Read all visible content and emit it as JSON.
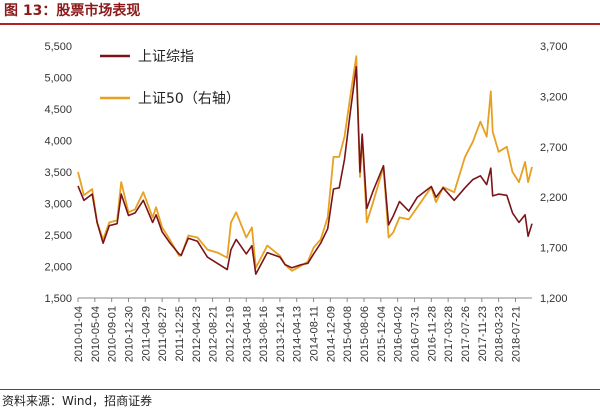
{
  "title": "图 13：股票市场表现",
  "source": "资料来源：Wind，招商证券",
  "chart_data": {
    "type": "line",
    "legend_position": "top-left",
    "grid": false,
    "y_left": {
      "lim": [
        1500,
        5500
      ],
      "ticks": [
        "1,500",
        "2,000",
        "2,500",
        "3,000",
        "3,500",
        "4,000",
        "4,500",
        "5,000",
        "5,500"
      ]
    },
    "y_right": {
      "lim": [
        1200,
        3700
      ],
      "ticks": [
        "1,200",
        "1,700",
        "2,200",
        "2,700",
        "3,200",
        "3,700"
      ]
    },
    "x_tick_labels": [
      "2010-01-04",
      "2010-05-04",
      "2010-09-01",
      "2010-12-30",
      "2011-04-29",
      "2011-08-27",
      "2011-12-25",
      "2012-04-23",
      "2012-08-21",
      "2012-12-19",
      "2013-04-18",
      "2013-08-16",
      "2013-12-14",
      "2014-04-13",
      "2014-08-11",
      "2014-12-09",
      "2015-04-08",
      "2015-08-06",
      "2015-12-04",
      "2016-04-02",
      "2016-07-31",
      "2016-11-28",
      "2017-03-28",
      "2017-07-26",
      "2017-11-23",
      "2018-03-23",
      "2018-07-21"
    ],
    "x_range": [
      "2010-01-04",
      "2018-11-16"
    ],
    "series": [
      {
        "name": "上证综指",
        "axis": "left",
        "color": "#7b1418",
        "points": [
          [
            "2010-01-04",
            3280
          ],
          [
            "2010-02-15",
            3050
          ],
          [
            "2010-04-15",
            3150
          ],
          [
            "2010-05-20",
            2700
          ],
          [
            "2010-07-02",
            2370
          ],
          [
            "2010-08-15",
            2650
          ],
          [
            "2010-10-10",
            2680
          ],
          [
            "2010-11-08",
            3150
          ],
          [
            "2010-12-30",
            2810
          ],
          [
            "2011-02-15",
            2850
          ],
          [
            "2011-04-15",
            3050
          ],
          [
            "2011-06-20",
            2700
          ],
          [
            "2011-07-15",
            2820
          ],
          [
            "2011-08-27",
            2550
          ],
          [
            "2011-10-20",
            2380
          ],
          [
            "2011-12-25",
            2200
          ],
          [
            "2012-01-10",
            2180
          ],
          [
            "2012-03-01",
            2450
          ],
          [
            "2012-05-05",
            2400
          ],
          [
            "2012-07-15",
            2150
          ],
          [
            "2012-09-25",
            2050
          ],
          [
            "2012-12-03",
            1950
          ],
          [
            "2012-12-30",
            2270
          ],
          [
            "2013-02-05",
            2430
          ],
          [
            "2013-04-18",
            2200
          ],
          [
            "2013-05-28",
            2330
          ],
          [
            "2013-06-25",
            1880
          ],
          [
            "2013-09-15",
            2220
          ],
          [
            "2013-12-14",
            2150
          ],
          [
            "2014-01-20",
            2030
          ],
          [
            "2014-03-10",
            1980
          ],
          [
            "2014-05-15",
            2030
          ],
          [
            "2014-07-01",
            2050
          ],
          [
            "2014-08-11",
            2200
          ],
          [
            "2014-10-01",
            2370
          ],
          [
            "2014-11-20",
            2600
          ],
          [
            "2014-12-31",
            3230
          ],
          [
            "2015-02-10",
            3250
          ],
          [
            "2015-03-20",
            3700
          ],
          [
            "2015-04-30",
            4450
          ],
          [
            "2015-06-12",
            5170
          ],
          [
            "2015-07-08",
            3500
          ],
          [
            "2015-07-24",
            4100
          ],
          [
            "2015-08-26",
            2920
          ],
          [
            "2015-10-10",
            3200
          ],
          [
            "2015-12-23",
            3600
          ],
          [
            "2016-01-28",
            2660
          ],
          [
            "2016-03-01",
            2800
          ],
          [
            "2016-04-15",
            3030
          ],
          [
            "2016-06-20",
            2880
          ],
          [
            "2016-08-20",
            3100
          ],
          [
            "2016-11-28",
            3270
          ],
          [
            "2016-12-31",
            3100
          ],
          [
            "2017-02-20",
            3250
          ],
          [
            "2017-05-10",
            3050
          ],
          [
            "2017-07-26",
            3250
          ],
          [
            "2017-09-20",
            3380
          ],
          [
            "2017-11-13",
            3440
          ],
          [
            "2017-12-28",
            3300
          ],
          [
            "2018-01-26",
            3560
          ],
          [
            "2018-02-09",
            3120
          ],
          [
            "2018-03-23",
            3150
          ],
          [
            "2018-05-20",
            3130
          ],
          [
            "2018-06-30",
            2850
          ],
          [
            "2018-08-15",
            2700
          ],
          [
            "2018-09-28",
            2820
          ],
          [
            "2018-10-19",
            2480
          ],
          [
            "2018-11-16",
            2680
          ]
        ]
      },
      {
        "name": "上证50（右轴）",
        "axis": "right",
        "color": "#e8a020",
        "points": [
          [
            "2010-01-04",
            2450
          ],
          [
            "2010-02-15",
            2220
          ],
          [
            "2010-04-15",
            2280
          ],
          [
            "2010-05-20",
            1950
          ],
          [
            "2010-07-02",
            1780
          ],
          [
            "2010-08-15",
            1950
          ],
          [
            "2010-10-10",
            1970
          ],
          [
            "2010-11-08",
            2350
          ],
          [
            "2010-12-30",
            2050
          ],
          [
            "2011-02-15",
            2080
          ],
          [
            "2011-04-15",
            2250
          ],
          [
            "2011-06-20",
            2000
          ],
          [
            "2011-07-15",
            2100
          ],
          [
            "2011-08-27",
            1900
          ],
          [
            "2011-10-20",
            1780
          ],
          [
            "2011-12-25",
            1620
          ],
          [
            "2012-01-10",
            1620
          ],
          [
            "2012-03-01",
            1820
          ],
          [
            "2012-05-05",
            1800
          ],
          [
            "2012-07-15",
            1680
          ],
          [
            "2012-09-25",
            1650
          ],
          [
            "2012-12-03",
            1600
          ],
          [
            "2012-12-30",
            1950
          ],
          [
            "2013-02-05",
            2050
          ],
          [
            "2013-04-18",
            1800
          ],
          [
            "2013-05-28",
            1900
          ],
          [
            "2013-06-25",
            1500
          ],
          [
            "2013-09-15",
            1720
          ],
          [
            "2013-12-14",
            1620
          ],
          [
            "2014-01-20",
            1530
          ],
          [
            "2014-03-10",
            1470
          ],
          [
            "2014-05-15",
            1520
          ],
          [
            "2014-07-01",
            1560
          ],
          [
            "2014-08-11",
            1700
          ],
          [
            "2014-10-01",
            1780
          ],
          [
            "2014-11-20",
            2000
          ],
          [
            "2014-12-31",
            2600
          ],
          [
            "2015-02-10",
            2600
          ],
          [
            "2015-03-20",
            2800
          ],
          [
            "2015-04-30",
            3200
          ],
          [
            "2015-06-12",
            3600
          ],
          [
            "2015-07-08",
            2400
          ],
          [
            "2015-07-24",
            2800
          ],
          [
            "2015-08-26",
            1950
          ],
          [
            "2015-10-10",
            2150
          ],
          [
            "2015-12-23",
            2500
          ],
          [
            "2016-01-28",
            1800
          ],
          [
            "2016-03-01",
            1850
          ],
          [
            "2016-04-15",
            2000
          ],
          [
            "2016-06-20",
            1980
          ],
          [
            "2016-08-20",
            2100
          ],
          [
            "2016-11-28",
            2300
          ],
          [
            "2016-12-31",
            2150
          ],
          [
            "2017-02-20",
            2300
          ],
          [
            "2017-05-10",
            2250
          ],
          [
            "2017-07-26",
            2600
          ],
          [
            "2017-09-20",
            2750
          ],
          [
            "2017-11-13",
            2950
          ],
          [
            "2017-12-28",
            2800
          ],
          [
            "2018-01-26",
            3250
          ],
          [
            "2018-02-09",
            2850
          ],
          [
            "2018-03-23",
            2650
          ],
          [
            "2018-05-20",
            2700
          ],
          [
            "2018-06-30",
            2450
          ],
          [
            "2018-08-15",
            2350
          ],
          [
            "2018-09-28",
            2550
          ],
          [
            "2018-10-19",
            2350
          ],
          [
            "2018-11-16",
            2500
          ]
        ]
      }
    ]
  }
}
